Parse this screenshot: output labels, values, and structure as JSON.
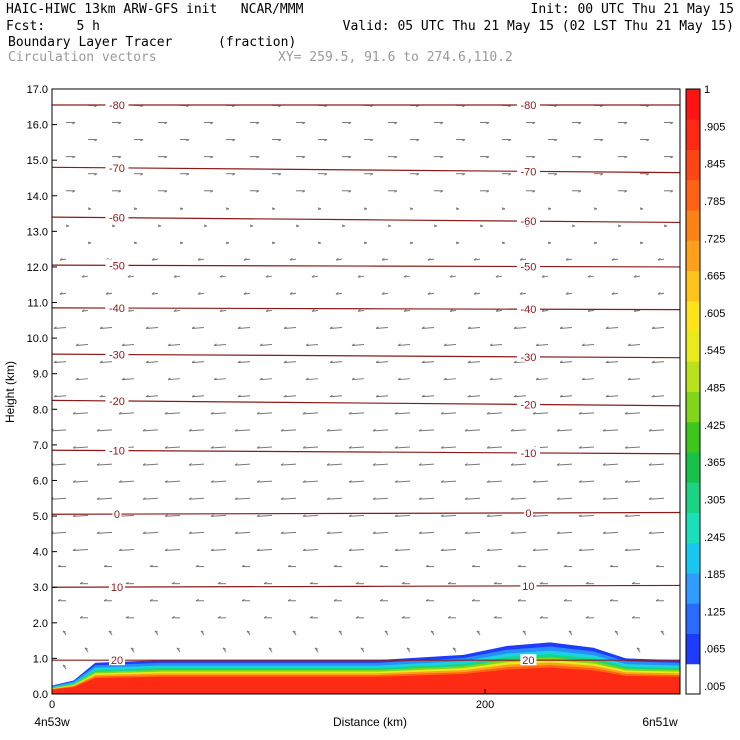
{
  "header": {
    "line1_left": "HAIC-HIWC 13km ARW-GFS init   NCAR/MMM",
    "line1_right": "Init: 00 UTC Thu 21 May 15",
    "line2_left": "Fcst:    5 h",
    "line2_right": "Valid: 05 UTC Thu 21 May 15 (02 LST Thu 21 May 15)",
    "line3_left": "Boundary Layer Tracer",
    "line3_units": "(fraction)",
    "line4_left": "Circulation vectors",
    "line4_xy": "XY= 259.5, 91.6 to 274.6,110.2"
  },
  "colors": {
    "contour": "#8b1a1a",
    "vector": "#777777",
    "colorbar": [
      "#ffffff",
      "#1e3cff",
      "#2a6bff",
      "#2f9cff",
      "#18c8f0",
      "#19e0b8",
      "#1ad484",
      "#17c24b",
      "#3cc71a",
      "#7fd61a",
      "#b8e21a",
      "#e8ea1a",
      "#ffe21a",
      "#ffc31a",
      "#ffa01a",
      "#ff8214",
      "#ff6414",
      "#ff4614",
      "#ff2a14",
      "#ff1414"
    ]
  },
  "chart_data": {
    "type": "cross-section",
    "title": "Boundary Layer Tracer",
    "units": "(fraction)",
    "overlay": "Circulation vectors",
    "xlabel": "Distance (km)",
    "ylabel": "Height (km)",
    "xlim": [
      0,
      290
    ],
    "ylim": [
      0,
      17
    ],
    "x_ticks": [
      {
        "v": 0,
        "label": "0"
      },
      {
        "v": 200,
        "label": "200"
      }
    ],
    "x_end_labels": {
      "left": "4n53w",
      "right": "6n51w"
    },
    "y_ticks": [
      "0.0",
      "1.0",
      "2.0",
      "3.0",
      "4.0",
      "5.0",
      "6.0",
      "7.0",
      "8.0",
      "9.0",
      "10.0",
      "11.0",
      "12.0",
      "13.0",
      "14.0",
      "15.0",
      "16.0",
      "17.0"
    ],
    "colorbar_labels": [
      ".005",
      ".065",
      ".125",
      ".185",
      ".245",
      ".305",
      ".365",
      ".425",
      ".485",
      ".545",
      ".605",
      ".665",
      ".725",
      ".785",
      ".845",
      ".905",
      "1"
    ],
    "temperature_contours": [
      {
        "label": "-80",
        "y": [
          16.55,
          16.55
        ]
      },
      {
        "label": "-70",
        "y": [
          14.8,
          14.65
        ]
      },
      {
        "label": "-60",
        "y": [
          13.4,
          13.25
        ]
      },
      {
        "label": "-50",
        "y": [
          12.05,
          12.0
        ]
      },
      {
        "label": "-40",
        "y": [
          10.85,
          10.8
        ]
      },
      {
        "label": "-30",
        "y": [
          9.55,
          9.45
        ]
      },
      {
        "label": "-20",
        "y": [
          8.25,
          8.1
        ]
      },
      {
        "label": "-10",
        "y": [
          6.85,
          6.75
        ]
      },
      {
        "label": "0",
        "y": [
          5.05,
          5.1
        ]
      },
      {
        "label": "10",
        "y": [
          3.0,
          3.05
        ]
      },
      {
        "label": "20",
        "y": [
          0.95,
          0.95
        ]
      }
    ],
    "tracer_top_km": [
      {
        "x": 0,
        "y": 0.4
      },
      {
        "x": 10,
        "y": 0.5
      },
      {
        "x": 20,
        "y": 0.95
      },
      {
        "x": 50,
        "y": 0.95
      },
      {
        "x": 100,
        "y": 0.95
      },
      {
        "x": 150,
        "y": 0.95
      },
      {
        "x": 190,
        "y": 1.1
      },
      {
        "x": 210,
        "y": 1.35
      },
      {
        "x": 230,
        "y": 1.45
      },
      {
        "x": 250,
        "y": 1.3
      },
      {
        "x": 265,
        "y": 1.0
      },
      {
        "x": 290,
        "y": 0.95
      }
    ]
  }
}
